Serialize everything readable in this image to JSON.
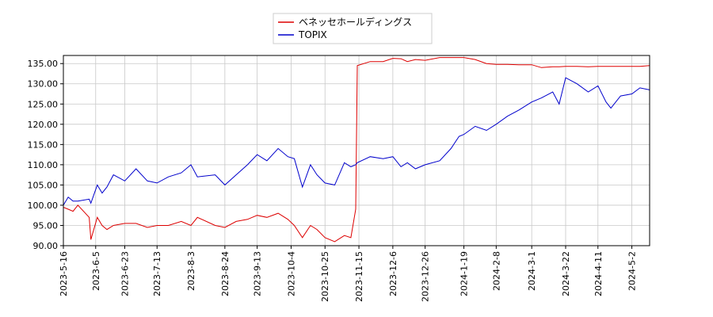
{
  "chart_data": {
    "type": "line",
    "x": [
      "2023-5-16",
      "2023-5-19",
      "2023-5-22",
      "2023-5-25",
      "2023-6-1",
      "2023-6-2",
      "2023-6-6",
      "2023-6-9",
      "2023-6-12",
      "2023-6-16",
      "2023-6-23",
      "2023-6-30",
      "2023-7-7",
      "2023-7-13",
      "2023-7-20",
      "2023-7-28",
      "2023-8-3",
      "2023-8-7",
      "2023-8-18",
      "2023-8-24",
      "2023-8-31",
      "2023-9-7",
      "2023-9-13",
      "2023-9-19",
      "2023-9-26",
      "2023-10-2",
      "2023-10-6",
      "2023-10-11",
      "2023-10-16",
      "2023-10-20",
      "2023-10-25",
      "2023-10-31",
      "2023-11-6",
      "2023-11-10",
      "2023-11-13",
      "2023-11-14",
      "2023-11-22",
      "2023-11-30",
      "2023-12-6",
      "2023-12-11",
      "2023-12-15",
      "2023-12-20",
      "2023-12-26",
      "2024-1-4",
      "2024-1-11",
      "2024-1-16",
      "2024-1-19",
      "2024-1-26",
      "2024-2-2",
      "2024-2-8",
      "2024-2-15",
      "2024-2-22",
      "2024-3-1",
      "2024-3-7",
      "2024-3-14",
      "2024-3-18",
      "2024-3-22",
      "2024-3-29",
      "2024-4-5",
      "2024-4-11",
      "2024-4-16",
      "2024-4-19",
      "2024-4-25",
      "2024-5-2",
      "2024-5-7",
      "2024-5-13"
    ],
    "series": [
      {
        "name": "ベネッセホールディングス",
        "color": "#dd0000",
        "values": [
          99.5,
          99,
          98.5,
          100,
          97,
          91.5,
          97,
          95,
          94,
          95,
          95.5,
          95.5,
          94.5,
          95,
          95,
          96,
          95,
          97,
          95,
          94.5,
          96,
          96.5,
          97.5,
          97,
          98,
          96.5,
          95,
          92,
          95,
          94,
          92,
          91,
          92.5,
          92,
          99,
          134.5,
          135.5,
          135.5,
          136.3,
          136.2,
          135.5,
          136,
          135.8,
          136.5,
          136.5,
          136.5,
          136.5,
          136,
          135,
          134.8,
          134.8,
          134.7,
          134.7,
          134,
          134.2,
          134.2,
          134.3,
          134.3,
          134.2,
          134.3,
          134.3,
          134.3,
          134.3,
          134.3,
          134.3,
          134.5
        ]
      },
      {
        "name": "TOPIX",
        "color": "#0000cc",
        "values": [
          100,
          102,
          101,
          101,
          101.5,
          100.5,
          105,
          103,
          104.5,
          107.5,
          106,
          109,
          106,
          105.5,
          107,
          108,
          110,
          107,
          107.5,
          105,
          107.5,
          110,
          112.5,
          111,
          114,
          112,
          111.5,
          104.5,
          110,
          107.5,
          105.5,
          105,
          110.5,
          109.5,
          110,
          110.5,
          112,
          111.5,
          112,
          109.5,
          110.5,
          109,
          110,
          111,
          114,
          117,
          117.5,
          119.5,
          118.5,
          120,
          122,
          123.5,
          125.5,
          126.5,
          128,
          125,
          131.5,
          130,
          128,
          129.5,
          125.5,
          124,
          127,
          127.5,
          129,
          128.5
        ]
      }
    ],
    "xlim": [
      "2023-5-16",
      "2024-5-13"
    ],
    "xticks": [
      "2023-5-16",
      "2023-6-5",
      "2023-6-23",
      "2023-7-13",
      "2023-8-3",
      "2023-8-24",
      "2023-9-13",
      "2023-10-4",
      "2023-10-25",
      "2023-11-15",
      "2023-12-6",
      "2023-12-26",
      "2024-1-19",
      "2024-2-8",
      "2024-3-1",
      "2024-3-22",
      "2024-4-11",
      "2024-5-2"
    ],
    "ylim": [
      90,
      137
    ],
    "yticks": [
      {
        "value": 90,
        "label": "90.00"
      },
      {
        "value": 95,
        "label": "95.00"
      },
      {
        "value": 100,
        "label": "100.00"
      },
      {
        "value": 105,
        "label": "105.00"
      },
      {
        "value": 110,
        "label": "110.00"
      },
      {
        "value": 115,
        "label": "115.00"
      },
      {
        "value": 120,
        "label": "120.00"
      },
      {
        "value": 125,
        "label": "125.00"
      },
      {
        "value": 130,
        "label": "130.00"
      },
      {
        "value": 135,
        "label": "135.00"
      }
    ],
    "grid": true,
    "legend": "top"
  }
}
